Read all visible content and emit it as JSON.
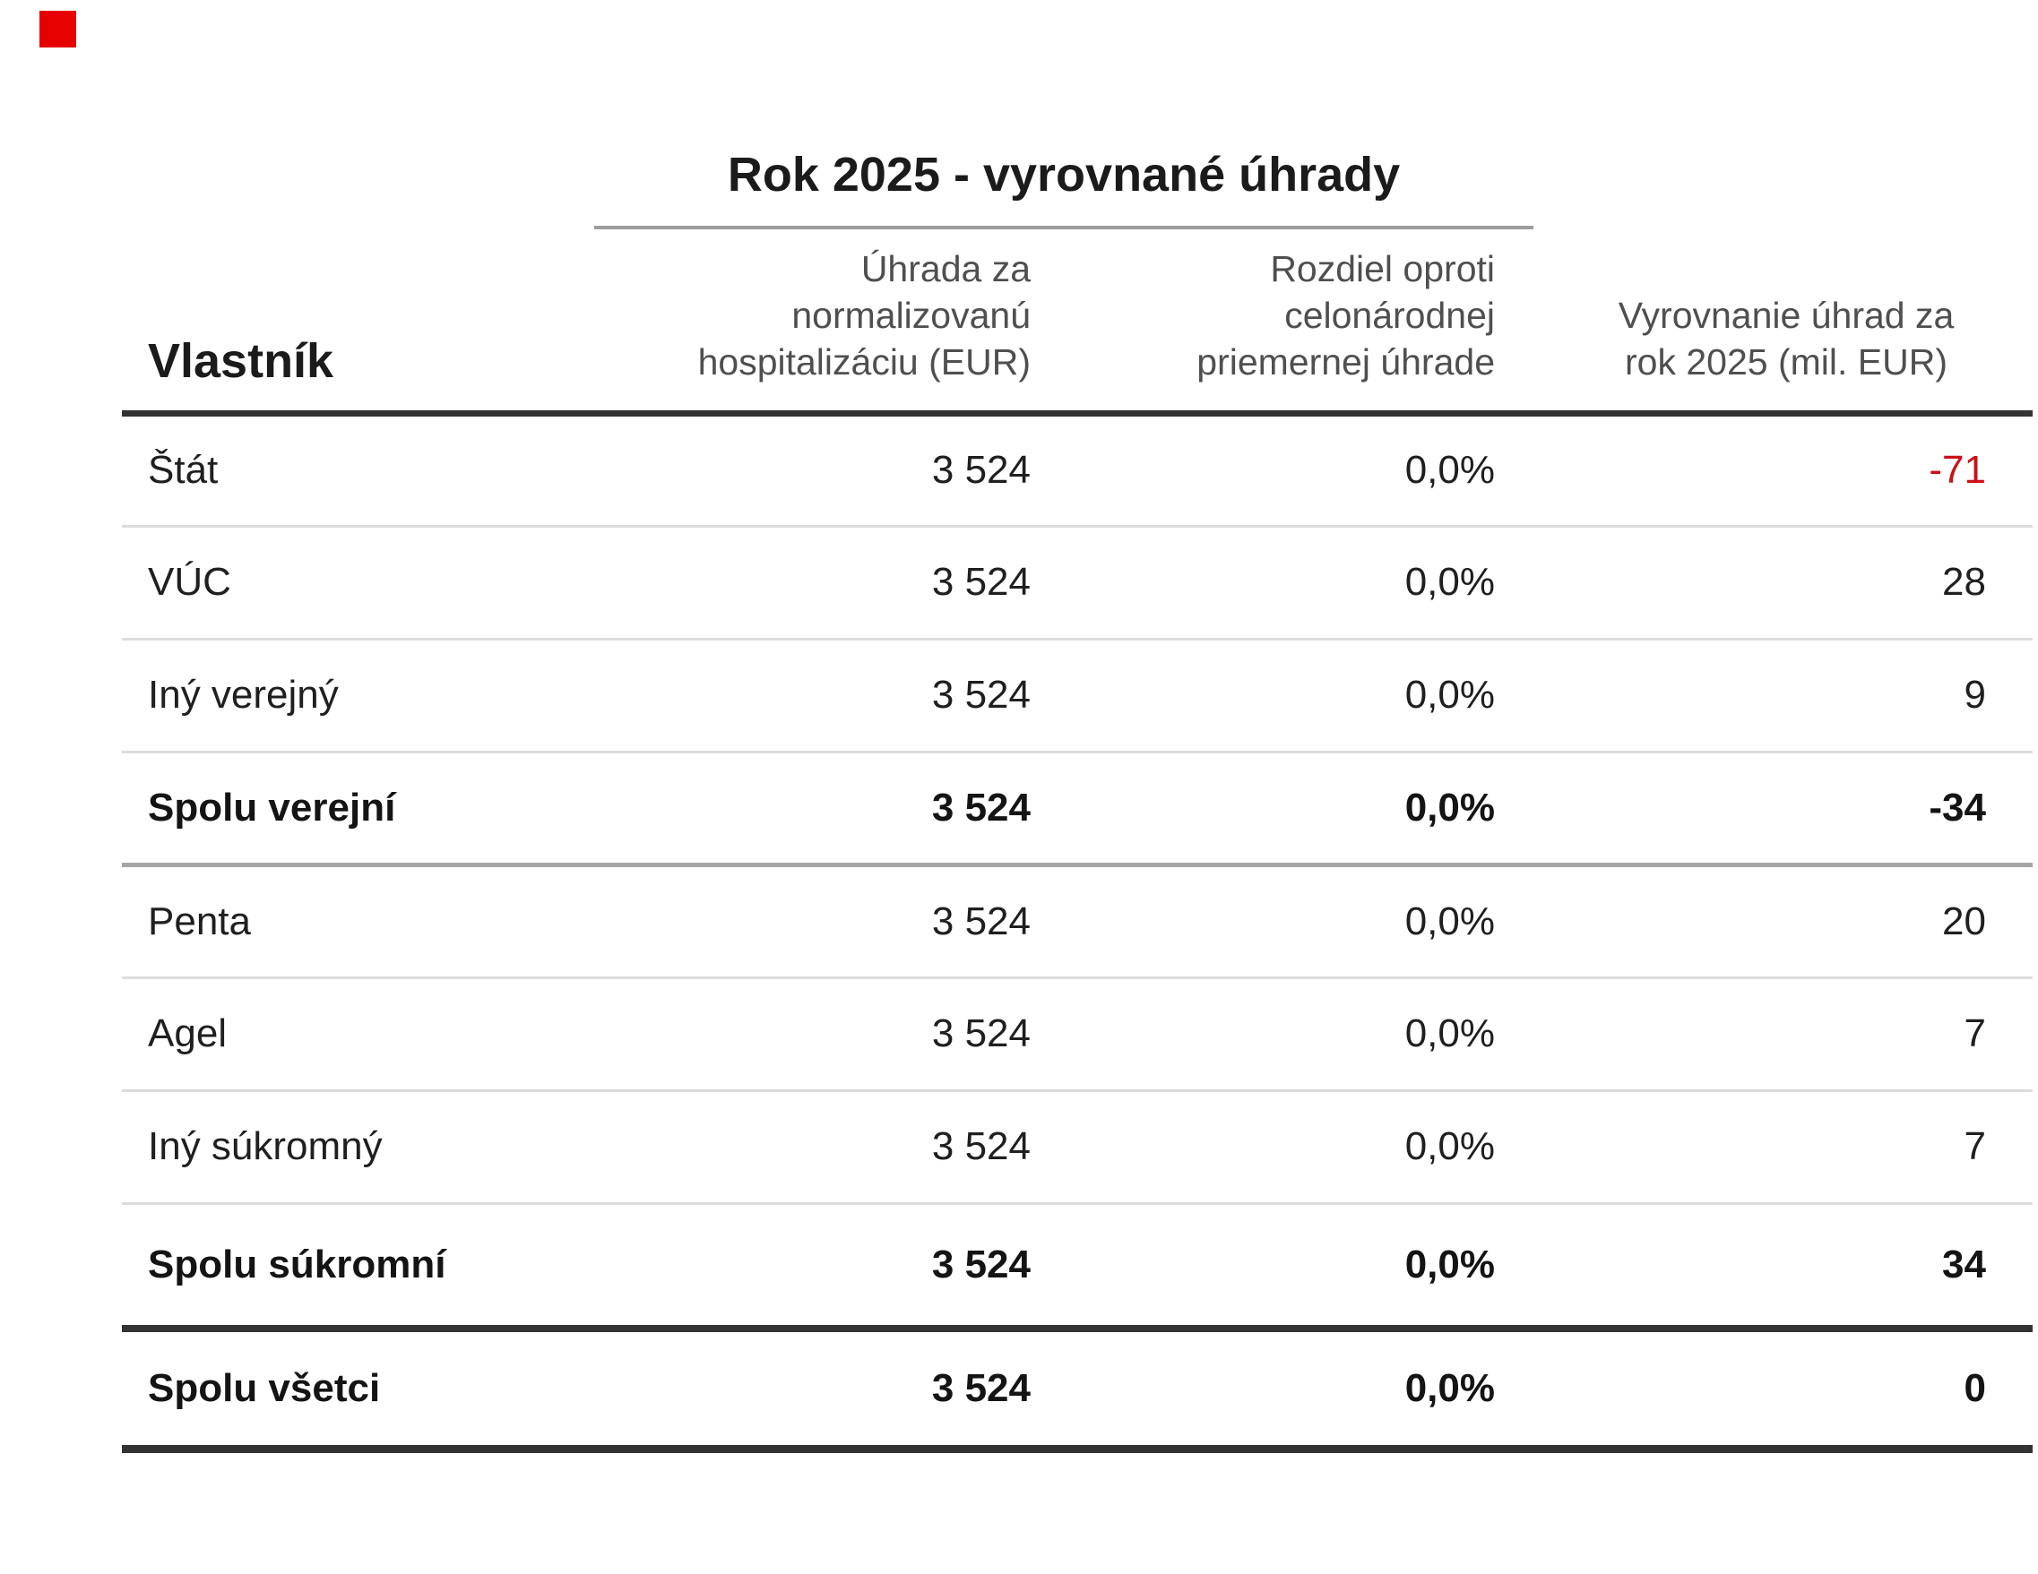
{
  "colors": {
    "accent_red": "#cb1016",
    "text_dark": "#1f1f1f",
    "header_gray": "#4f4f4f",
    "line_light": "#dcdcdc",
    "line_medium": "#a6a6a6",
    "line_heavy": "#333333",
    "title_underline": "#9e9e9e",
    "marker_red": "#e60000"
  },
  "marker": {
    "name": "red-square"
  },
  "table": {
    "title": "Rok 2025 - vyrovnané úhrady",
    "header": {
      "owner": "Vlastník",
      "payment_lines": [
        "Úhrada za",
        "normalizovanú",
        "hospitalizáciu (EUR)"
      ],
      "diff_lines": [
        "Rozdiel oproti",
        "celonárodnej",
        "priemernej úhrade"
      ],
      "settlement_lines": [
        "Vyrovnanie úhrad za",
        "rok 2025 (mil. EUR)"
      ]
    },
    "rows": [
      {
        "owner": "Štát",
        "payment": "3 524",
        "diff": "0,0%",
        "settlement": "-71"
      },
      {
        "owner": "VÚC",
        "payment": "3 524",
        "diff": "0,0%",
        "settlement": "28"
      },
      {
        "owner": "Iný verejný",
        "payment": "3 524",
        "diff": "0,0%",
        "settlement": "9"
      },
      {
        "owner": "Spolu verejní",
        "payment": "3 524",
        "diff": "0,0%",
        "settlement": "-34"
      },
      {
        "owner": "Penta",
        "payment": "3 524",
        "diff": "0,0%",
        "settlement": "20"
      },
      {
        "owner": "Agel",
        "payment": "3 524",
        "diff": "0,0%",
        "settlement": "7"
      },
      {
        "owner": "Iný súkromný",
        "payment": "3 524",
        "diff": "0,0%",
        "settlement": "7"
      },
      {
        "owner": "Spolu súkromní",
        "payment": "3 524",
        "diff": "0,0%",
        "settlement": "34"
      },
      {
        "owner": "Spolu všetci",
        "payment": "3 524",
        "diff": "0,0%",
        "settlement": "0"
      }
    ]
  },
  "chart_data": {
    "type": "table",
    "title": "Rok 2025 - vyrovnané úhrady",
    "columns": [
      "Vlastník",
      "Úhrada za normalizovanú hospitalizáciu (EUR)",
      "Rozdiel oproti celonárodnej priemernej úhrade",
      "Vyrovnanie úhrad za rok 2025 (mil. EUR)"
    ],
    "rows": [
      [
        "Štát",
        3524,
        "0,0%",
        -71
      ],
      [
        "VÚC",
        3524,
        "0,0%",
        28
      ],
      [
        "Iný verejný",
        3524,
        "0,0%",
        9
      ],
      [
        "Spolu verejní",
        3524,
        "0,0%",
        -34
      ],
      [
        "Penta",
        3524,
        "0,0%",
        20
      ],
      [
        "Agel",
        3524,
        "0,0%",
        7
      ],
      [
        "Iný súkromný",
        3524,
        "0,0%",
        7
      ],
      [
        "Spolu súkromní",
        3524,
        "0,0%",
        34
      ],
      [
        "Spolu všetci",
        3524,
        "0,0%",
        0
      ]
    ],
    "notes": "Bold summary rows: Spolu verejní, Spolu súkromní, Spolu všetci. Negative settlement values shown in red."
  }
}
